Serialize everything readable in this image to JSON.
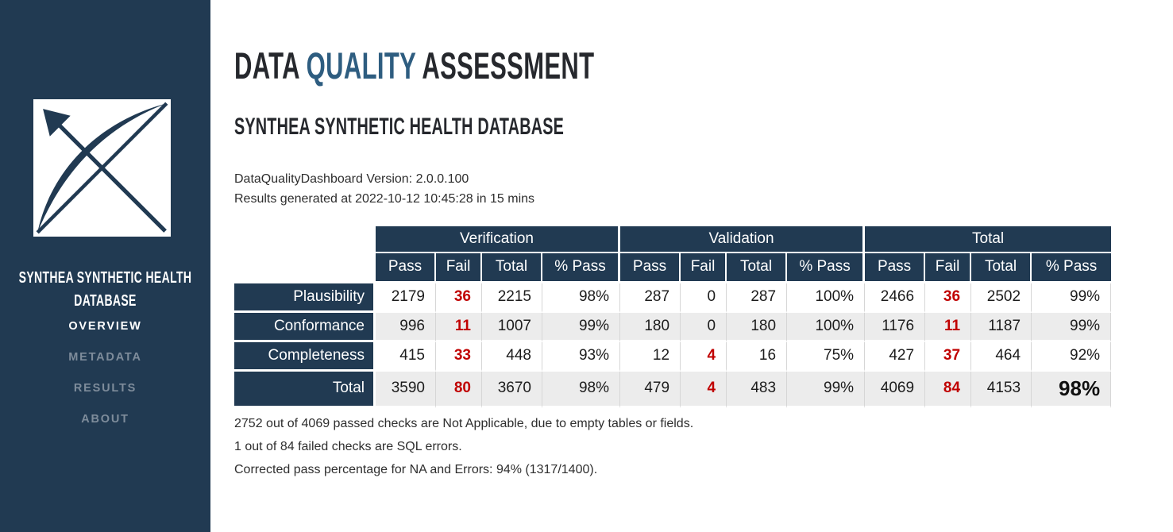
{
  "sidebar": {
    "logo_icon": "dqd-bow-arrow-logo",
    "database_name": "SYNTHEA SYNTHETIC HEALTH DATABASE",
    "nav": [
      {
        "label": "OVERVIEW",
        "active": true
      },
      {
        "label": "METADATA",
        "active": false
      },
      {
        "label": "RESULTS",
        "active": false
      },
      {
        "label": "ABOUT",
        "active": false
      }
    ]
  },
  "header": {
    "title_pre": "DATA",
    "title_highlight": "QUALITY",
    "title_post": "ASSESSMENT",
    "subtitle": "SYNTHEA SYNTHETIC HEALTH DATABASE",
    "version_line": "DataQualityDashboard Version: 2.0.0.100",
    "generated_line": "Results generated at 2022-10-12 10:45:28 in 15 mins"
  },
  "colors": {
    "navy": "#213A52",
    "accent_blue": "#2E5D80",
    "fail_red": "#C00000",
    "stripe_gray": "#ECECEC"
  },
  "table": {
    "groups": [
      "Verification",
      "Validation",
      "Total"
    ],
    "sub_headers": [
      "Pass",
      "Fail",
      "Total",
      "% Pass"
    ],
    "rows": [
      {
        "label": "Plausibility",
        "cells": [
          {
            "value": "2179"
          },
          {
            "value": "36",
            "highlight": true
          },
          {
            "value": "2215"
          },
          {
            "value": "98%"
          },
          {
            "value": "287"
          },
          {
            "value": "0"
          },
          {
            "value": "287"
          },
          {
            "value": "100%"
          },
          {
            "value": "2466"
          },
          {
            "value": "36",
            "highlight": true
          },
          {
            "value": "2502"
          },
          {
            "value": "99%"
          }
        ]
      },
      {
        "label": "Conformance",
        "cells": [
          {
            "value": "996"
          },
          {
            "value": "11",
            "highlight": true
          },
          {
            "value": "1007"
          },
          {
            "value": "99%"
          },
          {
            "value": "180"
          },
          {
            "value": "0"
          },
          {
            "value": "180"
          },
          {
            "value": "100%"
          },
          {
            "value": "1176"
          },
          {
            "value": "11",
            "highlight": true
          },
          {
            "value": "1187"
          },
          {
            "value": "99%"
          }
        ]
      },
      {
        "label": "Completeness",
        "cells": [
          {
            "value": "415"
          },
          {
            "value": "33",
            "highlight": true
          },
          {
            "value": "448"
          },
          {
            "value": "93%"
          },
          {
            "value": "12"
          },
          {
            "value": "4",
            "highlight": true
          },
          {
            "value": "16"
          },
          {
            "value": "75%"
          },
          {
            "value": "427"
          },
          {
            "value": "37",
            "highlight": true
          },
          {
            "value": "464"
          },
          {
            "value": "92%"
          }
        ]
      },
      {
        "label": "Total",
        "cells": [
          {
            "value": "3590"
          },
          {
            "value": "80",
            "highlight": true
          },
          {
            "value": "3670"
          },
          {
            "value": "98%"
          },
          {
            "value": "479"
          },
          {
            "value": "4",
            "highlight": true
          },
          {
            "value": "483"
          },
          {
            "value": "99%"
          },
          {
            "value": "4069"
          },
          {
            "value": "84",
            "highlight": true
          },
          {
            "value": "4153"
          },
          {
            "value": "98%",
            "big": true
          }
        ]
      }
    ]
  },
  "chart_data": {
    "type": "table",
    "title": "Data Quality Assessment summary",
    "column_groups": [
      "Verification",
      "Validation",
      "Total"
    ],
    "sub_columns": [
      "Pass",
      "Fail",
      "Total",
      "% Pass"
    ],
    "rows": [
      {
        "category": "Plausibility",
        "verification": [
          2179,
          36,
          2215,
          "98%"
        ],
        "validation": [
          287,
          0,
          287,
          "100%"
        ],
        "total": [
          2466,
          36,
          2502,
          "99%"
        ]
      },
      {
        "category": "Conformance",
        "verification": [
          996,
          11,
          1007,
          "99%"
        ],
        "validation": [
          180,
          0,
          180,
          "100%"
        ],
        "total": [
          1176,
          11,
          1187,
          "99%"
        ]
      },
      {
        "category": "Completeness",
        "verification": [
          415,
          33,
          448,
          "93%"
        ],
        "validation": [
          12,
          4,
          16,
          "75%"
        ],
        "total": [
          427,
          37,
          464,
          "92%"
        ]
      },
      {
        "category": "Total",
        "verification": [
          3590,
          80,
          3670,
          "98%"
        ],
        "validation": [
          479,
          4,
          483,
          "99%"
        ],
        "total": [
          4069,
          84,
          4153,
          "98%"
        ]
      }
    ]
  },
  "footnotes": [
    "2752 out of 4069 passed checks are Not Applicable, due to empty tables or fields.",
    "1 out of 84 failed checks are SQL errors.",
    "Corrected pass percentage for NA and Errors: 94% (1317/1400)."
  ]
}
